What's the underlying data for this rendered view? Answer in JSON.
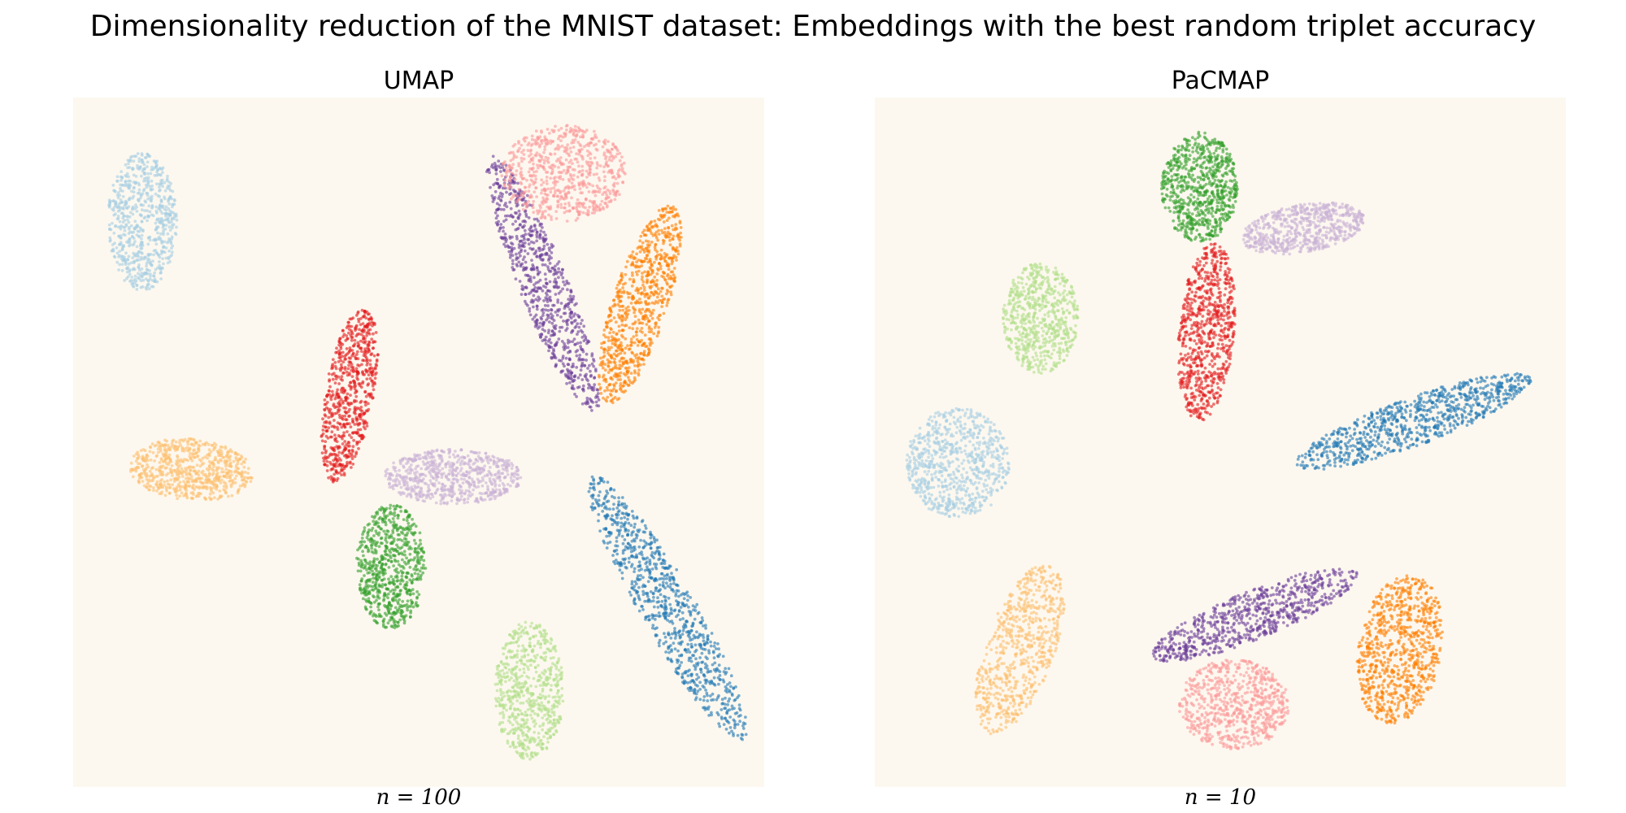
{
  "title": "Dimensionality reduction of the MNIST dataset: Embeddings with the best random triplet accuracy",
  "chart_data": [
    {
      "type": "scatter",
      "title": "UMAP",
      "xlabel": "n = 100",
      "ylabel": "",
      "xlim": [
        0,
        100
      ],
      "ylim": [
        0,
        100
      ],
      "grid": false,
      "background": "#fdf8ef",
      "clusters": [
        {
          "color": "#a6cee3",
          "center": [
            10,
            82
          ],
          "spread": [
            5,
            10
          ],
          "angle": 0,
          "count": 700
        },
        {
          "color": "#fdbf6f",
          "center": [
            17,
            46
          ],
          "spread": [
            9,
            4.5
          ],
          "angle": -5,
          "count": 700
        },
        {
          "color": "#e31a1c",
          "center": [
            40,
            57
          ],
          "spread": [
            3.5,
            13
          ],
          "angle": -10,
          "count": 700
        },
        {
          "color": "#33a02c",
          "center": [
            46,
            32
          ],
          "spread": [
            5,
            9
          ],
          "angle": 0,
          "count": 700
        },
        {
          "color": "#cab2d6",
          "center": [
            55,
            45
          ],
          "spread": [
            10,
            4
          ],
          "angle": 0,
          "count": 700
        },
        {
          "color": "#6a3d9a",
          "center": [
            68,
            73
          ],
          "spread": [
            3.5,
            20
          ],
          "angle": 22,
          "count": 800
        },
        {
          "color": "#fb9a99",
          "center": [
            71,
            89
          ],
          "spread": [
            9,
            7
          ],
          "angle": 0,
          "count": 700
        },
        {
          "color": "#ff7f00",
          "center": [
            82,
            70
          ],
          "spread": [
            4,
            15
          ],
          "angle": -18,
          "count": 800
        },
        {
          "color": "#1f78b4",
          "center": [
            86,
            26
          ],
          "spread": [
            4,
            22
          ],
          "angle": 30,
          "count": 900
        },
        {
          "color": "#b2df8a",
          "center": [
            66,
            14
          ],
          "spread": [
            5,
            10
          ],
          "angle": 0,
          "count": 650
        }
      ]
    },
    {
      "type": "scatter",
      "title": "PaCMAP",
      "xlabel": "n = 10",
      "ylabel": "",
      "xlim": [
        0,
        100
      ],
      "ylim": [
        0,
        100
      ],
      "grid": false,
      "background": "#fdf8ef",
      "clusters": [
        {
          "color": "#33a02c",
          "center": [
            47,
            87
          ],
          "spread": [
            5.5,
            8
          ],
          "angle": 0,
          "count": 750
        },
        {
          "color": "#cab2d6",
          "center": [
            62,
            81
          ],
          "spread": [
            9,
            3.5
          ],
          "angle": 10,
          "count": 650
        },
        {
          "color": "#e31a1c",
          "center": [
            48,
            66
          ],
          "spread": [
            4,
            13
          ],
          "angle": -5,
          "count": 750
        },
        {
          "color": "#b2df8a",
          "center": [
            24,
            68
          ],
          "spread": [
            5.5,
            8
          ],
          "angle": 0,
          "count": 650
        },
        {
          "color": "#1f78b4",
          "center": [
            78,
            53
          ],
          "spread": [
            18,
            3.5
          ],
          "angle": 20,
          "count": 850
        },
        {
          "color": "#a6cee3",
          "center": [
            12,
            47
          ],
          "spread": [
            7.5,
            8
          ],
          "angle": 0,
          "count": 750
        },
        {
          "color": "#fdbf6f",
          "center": [
            21,
            20
          ],
          "spread": [
            5,
            13
          ],
          "angle": -20,
          "count": 700
        },
        {
          "color": "#6a3d9a",
          "center": [
            55,
            25
          ],
          "spread": [
            16,
            3.5
          ],
          "angle": 22,
          "count": 750
        },
        {
          "color": "#fb9a99",
          "center": [
            52,
            12
          ],
          "spread": [
            8,
            6.5
          ],
          "angle": 0,
          "count": 700
        },
        {
          "color": "#ff7f00",
          "center": [
            76,
            20
          ],
          "spread": [
            6,
            11
          ],
          "angle": -10,
          "count": 800
        }
      ]
    }
  ]
}
